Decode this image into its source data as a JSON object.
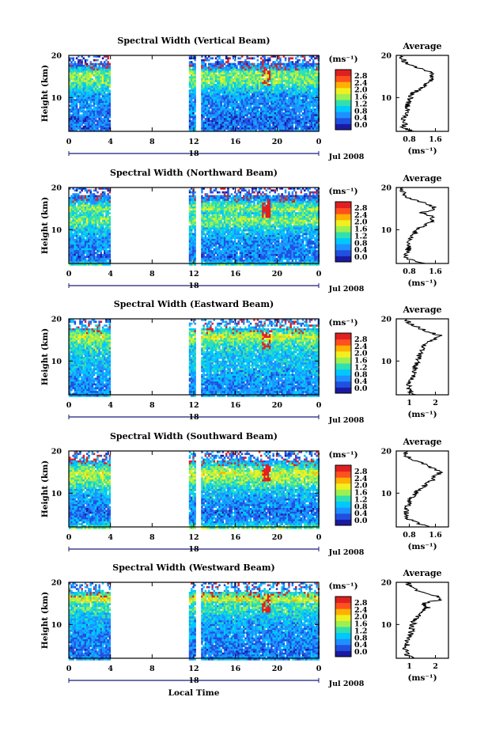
{
  "figure": {
    "xlabel": "Local Time",
    "date_label": "Jul 2008",
    "day_label": "18",
    "height_label": "Height (km)",
    "cbar_unit": "(ms⁻¹)",
    "avg_title": "Average",
    "avg_unit": "(ms⁻¹)"
  },
  "colorscale": {
    "ticks": [
      "2.8",
      "2.4",
      "2.0",
      "1.6",
      "1.2",
      "0.8",
      "0.4",
      "0.0"
    ],
    "colors": [
      "#1a1aa0",
      "#2050e0",
      "#1e90ff",
      "#00c8ff",
      "#30e0b0",
      "#9ef050",
      "#f0f020",
      "#ffb000",
      "#ff5020",
      "#e02020"
    ]
  },
  "chart_data": [
    {
      "type": "heatmap",
      "title": "Spectral Width (Vertical Beam)",
      "x_ticks": [
        "0",
        "4",
        "8",
        "12",
        "16",
        "20",
        "0"
      ],
      "xlim": [
        0,
        24
      ],
      "y_ticks": [
        "20",
        "10"
      ],
      "ylim": [
        2,
        20
      ],
      "data_gaps_hours": [
        [
          4,
          11.5
        ],
        [
          12.1,
          12.6
        ]
      ],
      "avg_profile": {
        "title": "Average",
        "x_ticks": [
          "0.8",
          "1.6"
        ],
        "xlim": [
          0.4,
          2.0
        ],
        "y_ticks": [
          "20",
          "10"
        ],
        "height_km": [
          2,
          3,
          4,
          5,
          6,
          7,
          8,
          9,
          10,
          11,
          12,
          13,
          14,
          15,
          16,
          17,
          18,
          19,
          20
        ],
        "width_ms": [
          0.9,
          0.6,
          0.7,
          0.6,
          0.7,
          0.75,
          0.75,
          0.8,
          0.85,
          0.9,
          1.1,
          1.3,
          1.5,
          1.5,
          1.55,
          1.05,
          0.7,
          0.6,
          0.55
        ]
      }
    },
    {
      "type": "heatmap",
      "title": "Spectral Width (Northward Beam)",
      "x_ticks": [
        "0",
        "4",
        "8",
        "12",
        "16",
        "20",
        "0"
      ],
      "xlim": [
        0,
        24
      ],
      "y_ticks": [
        "20",
        "10"
      ],
      "ylim": [
        2,
        20
      ],
      "data_gaps_hours": [
        [
          4,
          11.5
        ],
        [
          12.1,
          12.6
        ]
      ],
      "avg_profile": {
        "title": "Average",
        "x_ticks": [
          "0.8",
          "1.6"
        ],
        "xlim": [
          0.4,
          2.0
        ],
        "y_ticks": [
          "20",
          "10"
        ],
        "height_km": [
          2,
          3,
          4,
          5,
          6,
          7,
          8,
          9,
          10,
          11,
          12,
          13,
          14,
          15,
          16,
          17,
          18,
          19,
          20
        ],
        "width_ms": [
          1.3,
          0.8,
          0.65,
          0.75,
          0.8,
          0.8,
          0.85,
          0.95,
          1.05,
          1.25,
          1.5,
          1.55,
          1.2,
          1.6,
          1.4,
          0.95,
          0.7,
          0.6,
          0.55
        ]
      }
    },
    {
      "type": "heatmap",
      "title": "Spectral Width (Eastward Beam)",
      "x_ticks": [
        "0",
        "4",
        "8",
        "12",
        "16",
        "20",
        "0"
      ],
      "xlim": [
        0,
        24
      ],
      "y_ticks": [
        "20",
        "10"
      ],
      "ylim": [
        2,
        20
      ],
      "data_gaps_hours": [
        [
          4,
          11.5
        ],
        [
          12.1,
          12.6
        ]
      ],
      "avg_profile": {
        "title": "Average",
        "x_ticks": [
          "1",
          "2"
        ],
        "xlim": [
          0.5,
          2.5
        ],
        "y_ticks": [
          "20",
          "10"
        ],
        "height_km": [
          2,
          3,
          4,
          5,
          6,
          7,
          8,
          9,
          10,
          11,
          12,
          13,
          14,
          15,
          16,
          17,
          18,
          19,
          20
        ],
        "width_ms": [
          1.2,
          1.0,
          0.95,
          1.05,
          1.1,
          1.15,
          1.2,
          1.25,
          1.3,
          1.35,
          1.4,
          1.5,
          1.6,
          1.9,
          2.2,
          1.7,
          1.3,
          1.0,
          0.9
        ]
      }
    },
    {
      "type": "heatmap",
      "title": "Spectral Width (Southward Beam)",
      "x_ticks": [
        "0",
        "4",
        "8",
        "12",
        "16",
        "20",
        "0"
      ],
      "xlim": [
        0,
        24
      ],
      "y_ticks": [
        "20",
        "10"
      ],
      "ylim": [
        2,
        20
      ],
      "data_gaps_hours": [
        [
          4,
          11.5
        ],
        [
          12.1,
          12.6
        ]
      ],
      "avg_profile": {
        "title": "Average",
        "x_ticks": [
          "0.8",
          "1.6"
        ],
        "xlim": [
          0.4,
          2.0
        ],
        "y_ticks": [
          "20",
          "10"
        ],
        "height_km": [
          2,
          3,
          4,
          5,
          6,
          7,
          8,
          9,
          10,
          11,
          12,
          13,
          14,
          15,
          16,
          17,
          18,
          19,
          20
        ],
        "width_ms": [
          1.5,
          1.0,
          0.75,
          0.7,
          0.7,
          0.75,
          0.8,
          0.9,
          1.0,
          1.1,
          1.3,
          1.5,
          1.6,
          1.75,
          1.45,
          1.2,
          0.85,
          0.7,
          0.65
        ]
      }
    },
    {
      "type": "heatmap",
      "title": "Spectral Width (Westward Beam)",
      "x_ticks": [
        "0",
        "4",
        "8",
        "12",
        "16",
        "20",
        "0"
      ],
      "xlim": [
        0,
        24
      ],
      "y_ticks": [
        "20",
        "10"
      ],
      "ylim": [
        2,
        20
      ],
      "data_gaps_hours": [
        [
          4,
          11.5
        ],
        [
          12.1,
          12.6
        ]
      ],
      "avg_profile": {
        "title": "Average",
        "x_ticks": [
          "1",
          "2"
        ],
        "xlim": [
          0.5,
          2.5
        ],
        "y_ticks": [
          "20",
          "10"
        ],
        "height_km": [
          2,
          3,
          4,
          5,
          6,
          7,
          8,
          9,
          10,
          11,
          12,
          13,
          14,
          15,
          16,
          17,
          18,
          19,
          20
        ],
        "width_ms": [
          1.1,
          0.9,
          0.85,
          0.9,
          0.95,
          1.0,
          1.05,
          1.1,
          1.15,
          1.2,
          1.3,
          1.5,
          1.7,
          1.5,
          2.3,
          1.9,
          1.3,
          1.0,
          0.95
        ]
      }
    }
  ]
}
